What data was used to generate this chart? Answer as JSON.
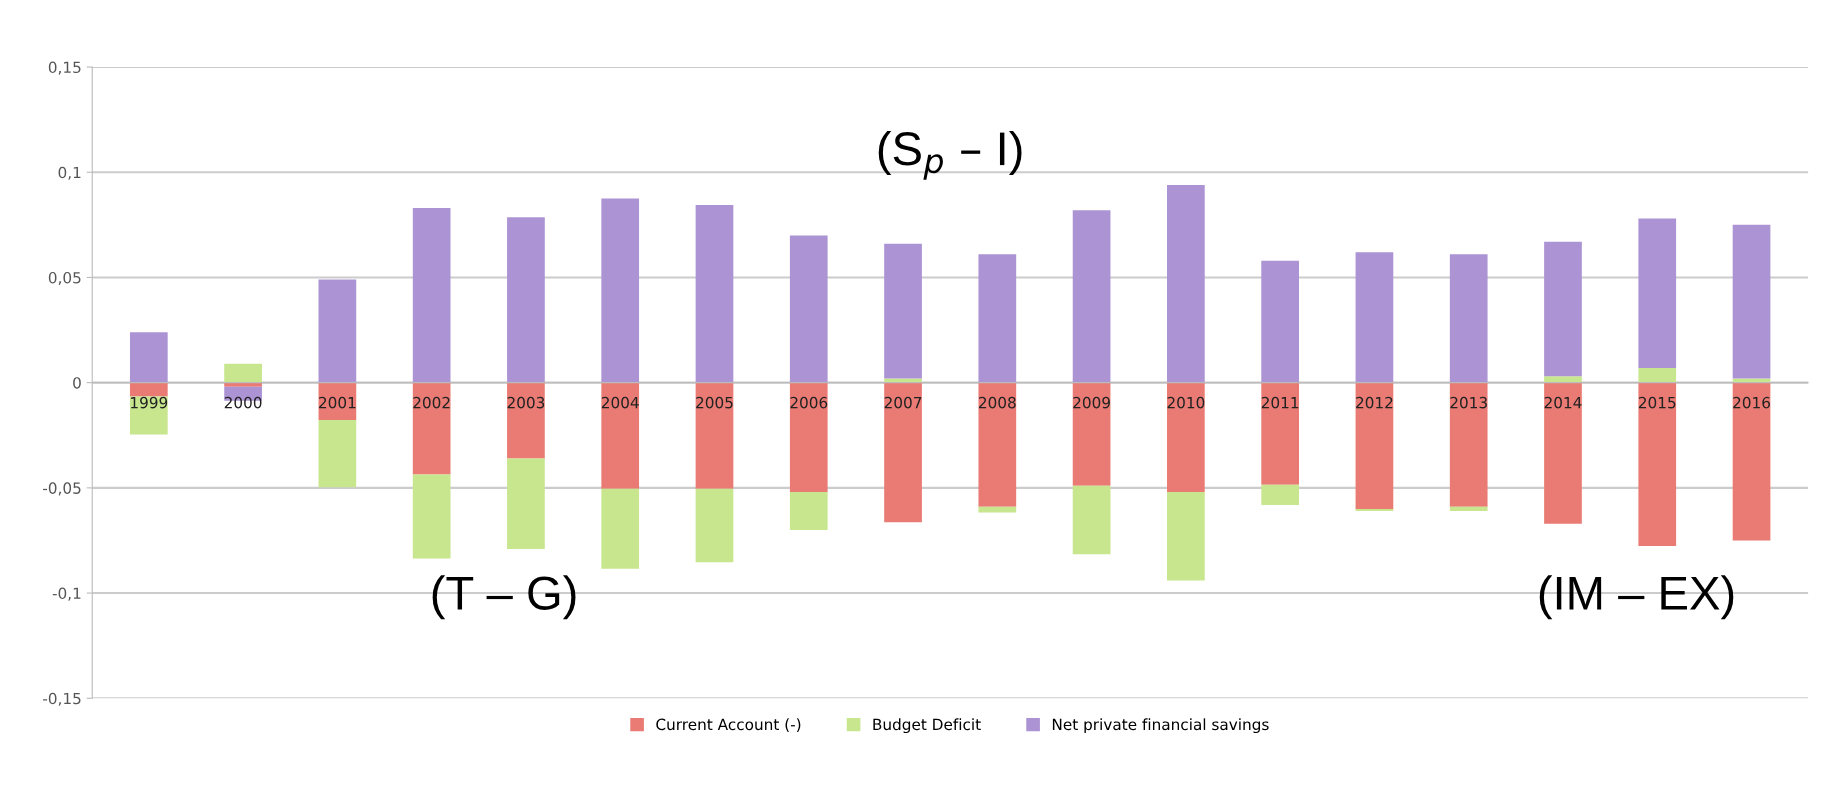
{
  "chart_data": {
    "type": "bar",
    "stacked": true,
    "categories": [
      "1999",
      "2000",
      "2001",
      "2002",
      "2003",
      "2004",
      "2005",
      "2006",
      "2007",
      "2008",
      "2009",
      "2010",
      "2011",
      "2012",
      "2013",
      "2014",
      "2015",
      "2016"
    ],
    "series": [
      {
        "name": "Current Account (-)",
        "color": "#ea7b74",
        "values": [
          -0.0066,
          -0.002,
          -0.0177,
          -0.0436,
          -0.036,
          -0.0504,
          -0.0504,
          -0.052,
          -0.0664,
          -0.059,
          -0.049,
          -0.052,
          -0.0485,
          -0.06,
          -0.059,
          -0.067,
          -0.0776,
          -0.075
        ]
      },
      {
        "name": "Budget Deficit",
        "color": "#c8e68e",
        "values": [
          -0.018,
          0.009,
          -0.032,
          -0.04,
          -0.043,
          -0.038,
          -0.035,
          -0.018,
          0.002,
          -0.0027,
          -0.0325,
          -0.042,
          -0.0097,
          -0.001,
          -0.002,
          0.003,
          0.007,
          0.002
        ]
      },
      {
        "name": "Net private financial savings",
        "color": "#ab93d4",
        "values": [
          0.024,
          -0.0066,
          0.049,
          0.083,
          0.0786,
          0.0875,
          0.0845,
          0.07,
          0.064,
          0.061,
          0.082,
          0.094,
          0.058,
          0.062,
          0.061,
          0.064,
          0.071,
          0.073
        ]
      }
    ],
    "ylim": [
      -0.15,
      0.15
    ],
    "yticks": [
      {
        "value": -0.15,
        "label": "-0,15"
      },
      {
        "value": -0.1,
        "label": "-0,1"
      },
      {
        "value": -0.05,
        "label": "-0,05"
      },
      {
        "value": 0,
        "label": "0"
      },
      {
        "value": 0.05,
        "label": "0,05"
      },
      {
        "value": 0.1,
        "label": "0,1"
      },
      {
        "value": 0.15,
        "label": "0,15"
      }
    ],
    "grid": "y",
    "legend": "bottom",
    "annotations": [
      "(S$_{p}$ – I)",
      "(T – G)",
      "(IM – EX)"
    ]
  }
}
